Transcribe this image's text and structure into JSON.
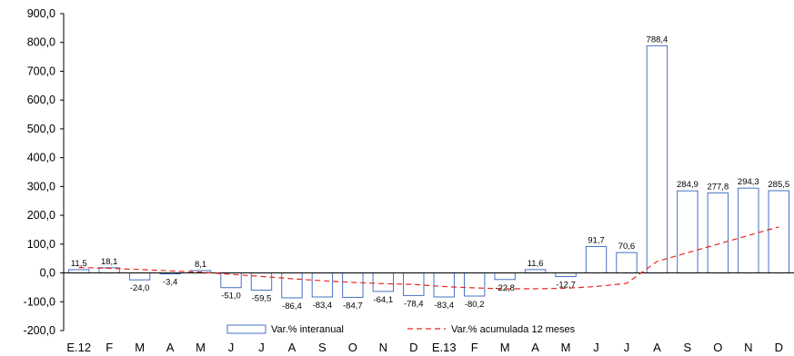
{
  "chart_data": {
    "type": "bar",
    "categories": [
      "E.12",
      "F",
      "M",
      "A",
      "M",
      "J",
      "J",
      "A",
      "S",
      "O",
      "N",
      "D",
      "E.13",
      "F",
      "M",
      "A",
      "M",
      "J",
      "J",
      "A",
      "S",
      "O",
      "N",
      "D"
    ],
    "series": [
      {
        "name": "Var.% interanual",
        "kind": "bar",
        "color": "#4472C4",
        "values": [
          11.5,
          18.1,
          -24.0,
          -3.4,
          8.1,
          -51.0,
          -59.5,
          -86.4,
          -83.4,
          -84.7,
          -64.1,
          -78.4,
          -83.4,
          -80.2,
          -22.8,
          11.6,
          -12.7,
          91.7,
          70.6,
          788.4,
          284.9,
          277.8,
          294.3,
          285.5
        ],
        "labels": [
          "11,5",
          "18,1",
          "-24,0",
          "-3,4",
          "8,1",
          "-51,0",
          "-59,5",
          "-86,4",
          "-83,4",
          "-84,7",
          "-64,1",
          "-78,4",
          "-83,4",
          "-80,2",
          "-22,8",
          "11,6",
          "-12,7",
          "91,7",
          "70,6",
          "788,4",
          "284,9",
          "277,8",
          "294,3",
          "285,5"
        ]
      },
      {
        "name": "Var.% acumulada 12 meses",
        "kind": "line",
        "style": "dashed",
        "color": "#E8251F",
        "values": [
          19,
          16,
          12,
          7,
          3,
          -5,
          -12,
          -20,
          -27,
          -33,
          -37,
          -40,
          -47,
          -52,
          -55,
          -55,
          -53,
          -47,
          -36,
          40,
          70,
          100,
          130,
          160
        ]
      }
    ],
    "ylim": [
      -200,
      900
    ],
    "yticks": [
      "-200,0",
      "-100,0",
      "0,0",
      "100,0",
      "200,0",
      "300,0",
      "400,0",
      "500,0",
      "600,0",
      "700,0",
      "800,0",
      "900,0"
    ],
    "legend_position": "bottom-center",
    "grid": false
  }
}
